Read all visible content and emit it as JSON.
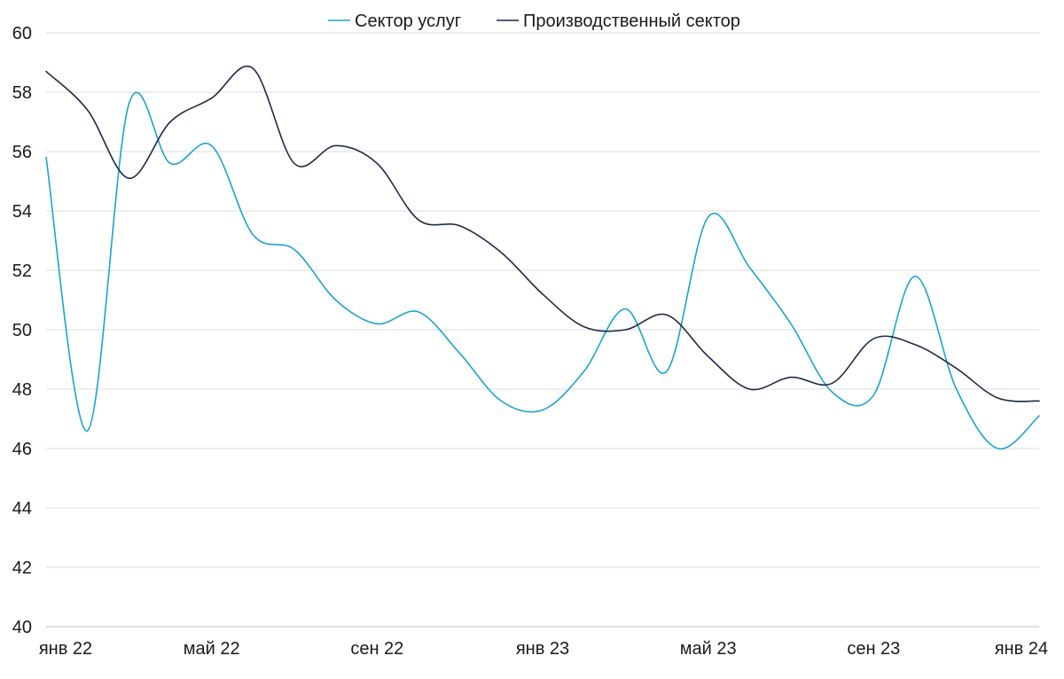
{
  "chart_data": {
    "type": "line",
    "title": "",
    "xlabel": "",
    "ylabel": "",
    "ylim": [
      40,
      60
    ],
    "yticks": [
      40,
      42,
      44,
      46,
      48,
      50,
      52,
      54,
      56,
      58,
      60
    ],
    "grid": "horizontal",
    "legend_position": "top-center",
    "x_tick_labels": [
      "янв 22",
      "май 22",
      "сен 22",
      "янв 23",
      "май 23",
      "сен 23",
      "янв 24"
    ],
    "x_tick_month_index": [
      0,
      4,
      8,
      12,
      16,
      20,
      24
    ],
    "months": [
      "2022-01",
      "2022-02",
      "2022-03",
      "2022-04",
      "2022-05",
      "2022-06",
      "2022-07",
      "2022-08",
      "2022-09",
      "2022-10",
      "2022-11",
      "2022-12",
      "2023-01",
      "2023-02",
      "2023-03",
      "2023-04",
      "2023-05",
      "2023-06",
      "2023-07",
      "2023-08",
      "2023-09",
      "2023-10",
      "2023-11",
      "2023-12",
      "2024-01"
    ],
    "series": [
      {
        "name": "Сектор услуг",
        "color": "#1aa3d1",
        "values": [
          55.8,
          46.6,
          57.6,
          55.6,
          56.2,
          53.2,
          52.7,
          51.0,
          50.2,
          50.6,
          49.2,
          47.6,
          47.3,
          48.6,
          50.7,
          48.6,
          53.8,
          52.1,
          50.2,
          47.9,
          47.8,
          51.8,
          48.0,
          46.0,
          47.1
        ]
      },
      {
        "name": "Производственный сектор",
        "color": "#1f2a44",
        "values": [
          58.7,
          57.4,
          55.1,
          57.0,
          57.8,
          58.8,
          55.6,
          56.2,
          55.6,
          53.7,
          53.5,
          52.6,
          51.2,
          50.1,
          50.0,
          50.5,
          49.1,
          48.0,
          48.4,
          48.2,
          49.7,
          49.5,
          48.7,
          47.7,
          47.6
        ]
      }
    ]
  }
}
